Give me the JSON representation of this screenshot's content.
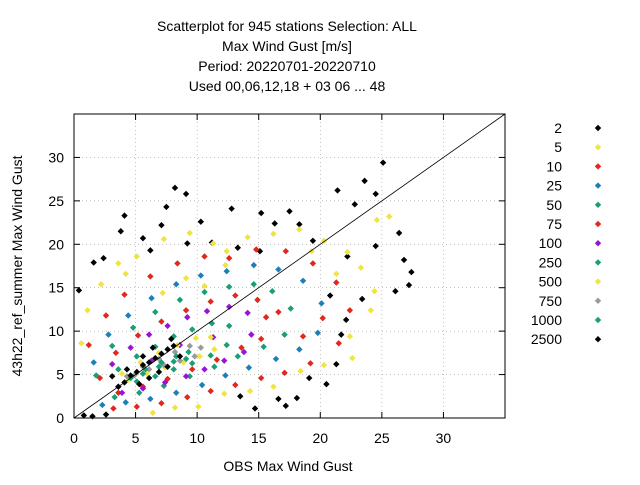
{
  "chart_data": {
    "type": "scatter",
    "title_lines": [
      "Scatterplot for  945 stations Selection: ALL",
      "Max Wind Gust [m/s]",
      "Period: 20220701-20220710",
      "Used  00,06,12,18  + 03 06 ... 48"
    ],
    "xlabel": "OBS Max Wind Gust",
    "ylabel": "43h22_ref_summer Max Wind Gust",
    "xlim": [
      0,
      35
    ],
    "ylim": [
      0,
      35
    ],
    "xticks": [
      "0",
      "5",
      "10",
      "15",
      "20",
      "25",
      "30"
    ],
    "yticks": [
      "0",
      "5",
      "10",
      "15",
      "20",
      "25",
      "30"
    ],
    "grid": true,
    "legend_position": "right, outside plot",
    "reference_line": "y = x",
    "legend": [
      {
        "label": "2",
        "color": "#000000"
      },
      {
        "label": "5",
        "color": "#f0e442"
      },
      {
        "label": "10",
        "color": "#e0281d"
      },
      {
        "label": "25",
        "color": "#1b80b8"
      },
      {
        "label": "50",
        "color": "#1a9e77"
      },
      {
        "label": "75",
        "color": "#e0281d"
      },
      {
        "label": "100",
        "color": "#9b12d6"
      },
      {
        "label": "250",
        "color": "#1a9e77"
      },
      {
        "label": "500",
        "color": "#f0e442"
      },
      {
        "label": "750",
        "color": "#9a9a9a"
      },
      {
        "label": "1000",
        "color": "#1a9e77"
      },
      {
        "label": "2500",
        "color": "#000000"
      }
    ],
    "series": [
      {
        "name": "2",
        "color": "#000000",
        "points": [
          [
            8.2,
            26.5
          ],
          [
            9.1,
            25.8
          ],
          [
            7.5,
            24.3
          ],
          [
            10.3,
            22.6
          ],
          [
            12.8,
            24.1
          ],
          [
            15.2,
            23.6
          ],
          [
            16.3,
            22.4
          ],
          [
            17.5,
            23.8
          ],
          [
            18.3,
            22.3
          ],
          [
            21.4,
            26.2
          ],
          [
            22.8,
            24.6
          ],
          [
            24.5,
            25.8
          ],
          [
            25.1,
            29.4
          ],
          [
            23.6,
            27.3
          ],
          [
            26.4,
            21.3
          ],
          [
            26.8,
            18.2
          ],
          [
            27.4,
            16.8
          ],
          [
            27.2,
            15.3
          ],
          [
            26.1,
            14.6
          ],
          [
            24.5,
            19.8
          ],
          [
            20.8,
            14.1
          ],
          [
            21.3,
            6.2
          ],
          [
            18.1,
            2.3
          ],
          [
            17.2,
            1.4
          ],
          [
            16.6,
            2.2
          ],
          [
            14.7,
            1.1
          ],
          [
            13.5,
            2.5
          ],
          [
            4.1,
            23.3
          ],
          [
            5.6,
            20.7
          ],
          [
            3.8,
            21.5
          ],
          [
            2.4,
            18.4
          ],
          [
            1.6,
            17.9
          ],
          [
            6.2,
            19.3
          ],
          [
            11.2,
            20.2
          ],
          [
            13.3,
            19.6
          ],
          [
            19.4,
            20.4
          ],
          [
            22.2,
            18.6
          ],
          [
            23.4,
            13.7
          ],
          [
            22.1,
            11.3
          ],
          [
            21.7,
            9.6
          ],
          [
            19.1,
            4.6
          ],
          [
            20.5,
            3.9
          ],
          [
            15.1,
            19.2
          ],
          [
            9.2,
            20.1
          ],
          [
            7.1,
            22.2
          ],
          [
            0.4,
            14.7
          ],
          [
            0.8,
            0.3
          ],
          [
            1.5,
            0.2
          ],
          [
            2.6,
            0.4
          ]
        ]
      },
      {
        "name": "5",
        "color": "#f0e442",
        "points": [
          [
            2.2,
            15.4
          ],
          [
            3.6,
            17.8
          ],
          [
            5.1,
            18.6
          ],
          [
            7.3,
            20.6
          ],
          [
            9.4,
            21.3
          ],
          [
            11.3,
            20.1
          ],
          [
            14.1,
            20.8
          ],
          [
            16.2,
            21.2
          ],
          [
            18.3,
            21.7
          ],
          [
            20.3,
            20.4
          ],
          [
            22.2,
            19.1
          ],
          [
            24.6,
            22.8
          ],
          [
            25.6,
            23.2
          ],
          [
            23.3,
            17.3
          ],
          [
            24.4,
            14.6
          ],
          [
            22.4,
            9.4
          ],
          [
            20.3,
            6.1
          ],
          [
            18.4,
            5.4
          ],
          [
            16.2,
            3.6
          ],
          [
            14.3,
            3.1
          ],
          [
            12.2,
            2.8
          ],
          [
            10.1,
            1.3
          ],
          [
            8.2,
            1.2
          ],
          [
            6.4,
            0.6
          ],
          [
            1.1,
            12.4
          ],
          [
            0.6,
            8.6
          ],
          [
            4.2,
            16.6
          ],
          [
            12.4,
            19.2
          ],
          [
            19.3,
            19.2
          ],
          [
            21.3,
            16.6
          ],
          [
            24.1,
            12.4
          ],
          [
            22.6,
            6.9
          ]
        ]
      },
      {
        "name": "10",
        "color": "#e0281d",
        "points": [
          [
            2.6,
            11.8
          ],
          [
            4.1,
            14.2
          ],
          [
            6.2,
            16.3
          ],
          [
            8.4,
            17.8
          ],
          [
            10.6,
            18.6
          ],
          [
            12.6,
            18.4
          ],
          [
            14.8,
            19.4
          ],
          [
            17.2,
            19.2
          ],
          [
            19.4,
            17.8
          ],
          [
            21.3,
            15.6
          ],
          [
            22.4,
            12.4
          ],
          [
            21.5,
            8.6
          ],
          [
            19.2,
            6.3
          ],
          [
            17.1,
            5.2
          ],
          [
            15.2,
            4.6
          ],
          [
            13.1,
            3.8
          ],
          [
            11.1,
            3.1
          ],
          [
            9.2,
            2.4
          ],
          [
            7.1,
            1.7
          ],
          [
            5.1,
            1.3
          ],
          [
            3.2,
            1.1
          ],
          [
            1.2,
            8.4
          ],
          [
            16.6,
            12.2
          ],
          [
            18.6,
            9.4
          ],
          [
            20.2,
            11.5
          ]
        ]
      },
      {
        "name": "25",
        "color": "#1b80b8",
        "points": [
          [
            2.8,
            9.6
          ],
          [
            4.4,
            11.8
          ],
          [
            6.3,
            13.8
          ],
          [
            8.3,
            15.4
          ],
          [
            10.3,
            16.4
          ],
          [
            12.4,
            16.9
          ],
          [
            14.6,
            17.6
          ],
          [
            16.6,
            17.1
          ],
          [
            18.6,
            15.8
          ],
          [
            20.1,
            13.2
          ],
          [
            19.8,
            9.8
          ],
          [
            18.3,
            7.9
          ],
          [
            16.4,
            6.8
          ],
          [
            14.2,
            5.8
          ],
          [
            12.3,
            4.9
          ],
          [
            10.4,
            3.8
          ],
          [
            8.3,
            2.9
          ],
          [
            6.2,
            2.2
          ],
          [
            4.2,
            1.8
          ],
          [
            2.3,
            1.5
          ],
          [
            1.6,
            6.4
          ]
        ]
      },
      {
        "name": "50",
        "color": "#1a9e77",
        "points": [
          [
            3.1,
            8.3
          ],
          [
            4.8,
            10.4
          ],
          [
            6.6,
            12.2
          ],
          [
            8.6,
            13.6
          ],
          [
            10.6,
            14.5
          ],
          [
            12.6,
            15.1
          ],
          [
            14.6,
            15.4
          ],
          [
            16.1,
            14.6
          ],
          [
            17.6,
            12.6
          ],
          [
            17.1,
            9.6
          ],
          [
            15.4,
            8.2
          ],
          [
            13.3,
            7.1
          ],
          [
            11.4,
            5.9
          ],
          [
            9.4,
            4.8
          ],
          [
            7.3,
            3.7
          ],
          [
            5.3,
            2.9
          ],
          [
            3.3,
            2.4
          ],
          [
            1.8,
            4.9
          ]
        ]
      },
      {
        "name": "75",
        "color": "#e0281d",
        "points": [
          [
            3.4,
            7.5
          ],
          [
            5.2,
            9.5
          ],
          [
            7.1,
            11.1
          ],
          [
            9.1,
            12.4
          ],
          [
            11.1,
            13.4
          ],
          [
            13.1,
            14.1
          ],
          [
            14.9,
            13.6
          ],
          [
            15.6,
            11.6
          ],
          [
            15.2,
            9.1
          ],
          [
            13.6,
            8.1
          ],
          [
            11.6,
            6.7
          ],
          [
            9.6,
            5.6
          ],
          [
            7.6,
            4.5
          ],
          [
            5.6,
            3.6
          ],
          [
            3.6,
            2.9
          ],
          [
            2.1,
            4.6
          ]
        ]
      },
      {
        "name": "100",
        "color": "#9b12d6",
        "points": [
          [
            3.1,
            6.2
          ],
          [
            4.6,
            8.1
          ],
          [
            6.1,
            9.6
          ],
          [
            7.6,
            10.6
          ],
          [
            9.2,
            11.6
          ],
          [
            10.8,
            12.3
          ],
          [
            12.6,
            12.8
          ],
          [
            14.1,
            12.1
          ],
          [
            14.4,
            9.6
          ],
          [
            13.8,
            7.6
          ],
          [
            12.2,
            6.6
          ],
          [
            10.6,
            5.6
          ],
          [
            9.1,
            4.8
          ],
          [
            7.4,
            4.1
          ],
          [
            5.6,
            3.4
          ],
          [
            3.9,
            2.9
          ],
          [
            8.6,
            8.4
          ],
          [
            11.3,
            9.3
          ],
          [
            6.3,
            6.6
          ]
        ]
      },
      {
        "name": "250",
        "color": "#1a9e77",
        "points": [
          [
            3.6,
            5.6
          ],
          [
            5.1,
            7.1
          ],
          [
            6.6,
            8.2
          ],
          [
            8.1,
            9.4
          ],
          [
            9.6,
            10.2
          ],
          [
            11.2,
            10.9
          ],
          [
            12.6,
            10.6
          ],
          [
            12.4,
            8.4
          ],
          [
            11.1,
            7.2
          ],
          [
            9.6,
            6.3
          ],
          [
            8.1,
            5.6
          ],
          [
            6.6,
            4.8
          ],
          [
            5.1,
            4.2
          ],
          [
            3.6,
            3.6
          ]
        ]
      },
      {
        "name": "500",
        "color": "#f0e442",
        "points": [
          [
            3.9,
            5.1
          ],
          [
            5.4,
            6.4
          ],
          [
            6.9,
            7.5
          ],
          [
            8.4,
            8.4
          ],
          [
            9.9,
            9.2
          ],
          [
            11.1,
            9.3
          ],
          [
            11.4,
            7.9
          ],
          [
            10.2,
            7.1
          ],
          [
            8.9,
            6.4
          ],
          [
            7.4,
            5.8
          ],
          [
            5.9,
            5.1
          ],
          [
            4.4,
            4.4
          ],
          [
            10.6,
            15.2
          ],
          [
            12.3,
            17.6
          ],
          [
            9.1,
            16.1
          ],
          [
            7.2,
            14.4
          ]
        ]
      },
      {
        "name": "750",
        "color": "#9a9a9a",
        "points": [
          [
            4.3,
            4.8
          ],
          [
            5.6,
            5.9
          ],
          [
            6.9,
            6.8
          ],
          [
            8.2,
            7.6
          ],
          [
            9.4,
            8.3
          ],
          [
            10.3,
            8.1
          ],
          [
            9.8,
            7.1
          ],
          [
            8.6,
            6.6
          ],
          [
            7.3,
            6.1
          ],
          [
            6.1,
            5.6
          ],
          [
            4.9,
            4.9
          ]
        ]
      },
      {
        "name": "1000",
        "color": "#1a9e77",
        "points": [
          [
            4.6,
            4.6
          ],
          [
            5.8,
            5.6
          ],
          [
            7.1,
            6.4
          ],
          [
            8.3,
            7.1
          ],
          [
            9.3,
            7.6
          ],
          [
            9.1,
            6.8
          ],
          [
            8.1,
            6.5
          ],
          [
            6.9,
            5.9
          ],
          [
            5.6,
            5.1
          ]
        ]
      },
      {
        "name": "2500",
        "color": "#000000",
        "points": [
          [
            3.6,
            3.6
          ],
          [
            4.1,
            4.1
          ],
          [
            4.6,
            4.9
          ],
          [
            5.1,
            5.3
          ],
          [
            5.6,
            6.1
          ],
          [
            6.1,
            6.4
          ],
          [
            6.6,
            6.9
          ],
          [
            7.1,
            7.4
          ],
          [
            7.6,
            7.9
          ],
          [
            8.1,
            8.3
          ],
          [
            5.3,
            3.9
          ],
          [
            6.1,
            4.6
          ],
          [
            6.9,
            5.3
          ],
          [
            7.6,
            5.9
          ],
          [
            4.3,
            5.6
          ],
          [
            5.6,
            7.1
          ],
          [
            6.4,
            8.1
          ],
          [
            3.1,
            4.8
          ],
          [
            8.6,
            7.1
          ],
          [
            7.9,
            9.1
          ]
        ]
      }
    ]
  }
}
